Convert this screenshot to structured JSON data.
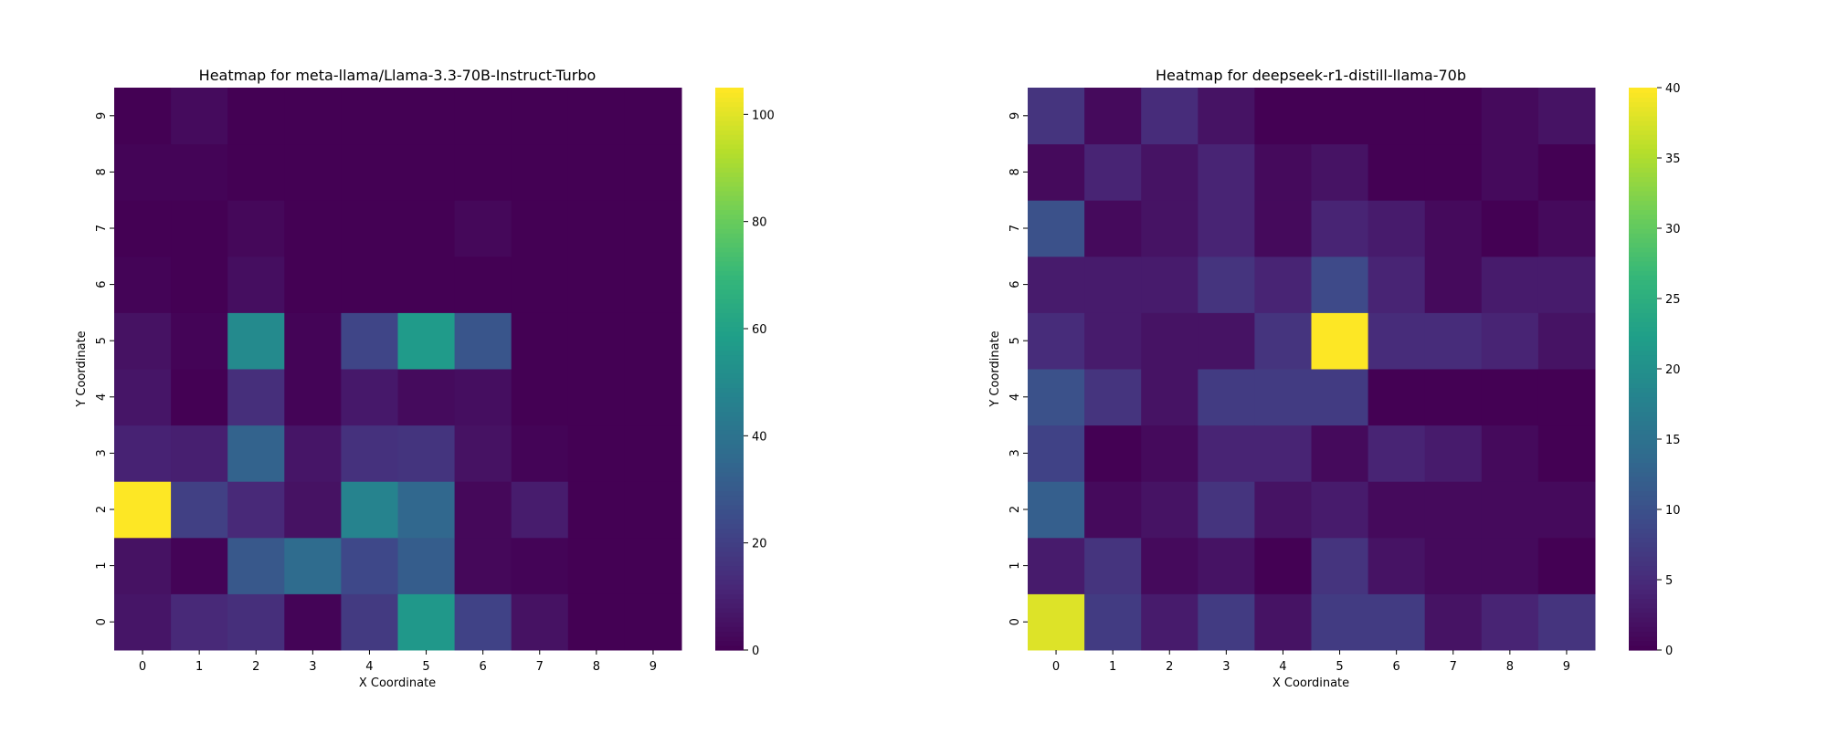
{
  "chart_data": [
    {
      "type": "heatmap",
      "title": "Heatmap for meta-llama/Llama-3.3-70B-Instruct-Turbo",
      "xlabel": "X Coordinate",
      "ylabel": "Y Coordinate",
      "x_ticks": [
        "0",
        "1",
        "2",
        "3",
        "4",
        "5",
        "6",
        "7",
        "8",
        "9"
      ],
      "y_ticks": [
        "0",
        "1",
        "2",
        "3",
        "4",
        "5",
        "6",
        "7",
        "8",
        "9"
      ],
      "colormap": "viridis",
      "vmin": 0,
      "vmax": 105,
      "colorbar_ticks": [
        0,
        20,
        40,
        60,
        80,
        100
      ],
      "rows_by_y": {
        "0": [
          6,
          12,
          14,
          1,
          18,
          56,
          21,
          5,
          0,
          0
        ],
        "1": [
          5,
          1,
          29,
          37,
          23,
          31,
          2,
          1,
          0,
          0
        ],
        "2": [
          105,
          20,
          12,
          5,
          47,
          35,
          2,
          8,
          0,
          0
        ],
        "3": [
          10,
          9,
          33,
          6,
          15,
          16,
          5,
          1,
          0,
          0
        ],
        "4": [
          6,
          0,
          14,
          1,
          7,
          3,
          4,
          0,
          0,
          0
        ],
        "5": [
          5,
          1,
          50,
          1,
          22,
          57,
          28,
          0,
          0,
          0
        ],
        "6": [
          1,
          0,
          4,
          0,
          0,
          0,
          0,
          0,
          0,
          0
        ],
        "7": [
          0,
          0,
          2,
          0,
          0,
          0,
          2,
          0,
          0,
          0
        ],
        "8": [
          1,
          1,
          0,
          0,
          0,
          0,
          0,
          0,
          0,
          0
        ],
        "9": [
          0,
          3,
          0,
          0,
          0,
          0,
          0,
          0,
          0,
          0
        ]
      }
    },
    {
      "type": "heatmap",
      "title": "Heatmap for deepseek-r1-distill-llama-70b",
      "xlabel": "X Coordinate",
      "ylabel": "Y Coordinate",
      "x_ticks": [
        "0",
        "1",
        "2",
        "3",
        "4",
        "5",
        "6",
        "7",
        "8",
        "9"
      ],
      "y_ticks": [
        "0",
        "1",
        "2",
        "3",
        "4",
        "5",
        "6",
        "7",
        "8",
        "9"
      ],
      "colormap": "viridis",
      "vmin": 0,
      "vmax": 40,
      "colorbar_ticks": [
        0,
        5,
        10,
        15,
        20,
        25,
        30,
        35,
        40
      ],
      "rows_by_y": {
        "0": [
          38,
          7,
          3,
          7,
          2,
          7,
          7,
          2,
          4,
          6
        ],
        "1": [
          3,
          6,
          1,
          2,
          0,
          6,
          2,
          1,
          1,
          0
        ],
        "2": [
          12,
          1,
          2,
          6,
          2,
          3,
          1,
          1,
          1,
          1
        ],
        "3": [
          8,
          0,
          1,
          4,
          4,
          1,
          4,
          3,
          1,
          0
        ],
        "4": [
          10,
          6,
          2,
          7,
          7,
          7,
          0,
          0,
          0,
          0
        ],
        "5": [
          5,
          3,
          2,
          2,
          6,
          40,
          5,
          5,
          4,
          2
        ],
        "6": [
          3,
          3,
          3,
          6,
          4,
          9,
          4,
          1,
          3,
          3
        ],
        "7": [
          10,
          1,
          2,
          4,
          1,
          4,
          3,
          1,
          0,
          1
        ],
        "8": [
          1,
          4,
          2,
          4,
          1,
          2,
          0,
          0,
          1,
          0
        ],
        "9": [
          6,
          1,
          5,
          2,
          0,
          0,
          0,
          0,
          1,
          2
        ]
      }
    }
  ]
}
